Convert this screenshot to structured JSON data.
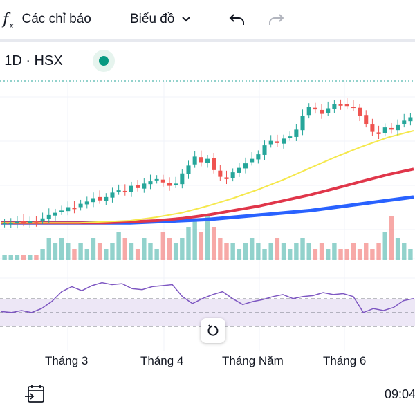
{
  "toolbar": {
    "indicators_icon": "fx-icon",
    "indicators_label": "Các chỉ báo",
    "chart_type_label": "Biểu đồ",
    "undo_icon": "undo-icon",
    "redo_icon": "redo-icon"
  },
  "legend": {
    "symbol_text": "· 1D · HSX",
    "status_color": "#089981"
  },
  "colors": {
    "up": "#26a69a",
    "down": "#ef5350",
    "ma_short": "#f5e84c",
    "ma_mid": "#e0364a",
    "ma_long": "#2962ff",
    "rsi_line": "#7e57c2",
    "rsi_band": "#ede7f6"
  },
  "time_axis": [
    "Tháng 3",
    "Tháng 4",
    "Tháng Năm",
    "Tháng 6"
  ],
  "reset_icon": "reset-icon",
  "bottom": {
    "date_range_icon": "calendar-goto-icon",
    "clock": "09:04"
  },
  "chart_data": {
    "type": "candlestick",
    "title": "",
    "panes": [
      "price",
      "volume",
      "rsi"
    ],
    "grid": true,
    "candles_close_trend": [
      30.1,
      30.1,
      30.2,
      30.1,
      30.3,
      30.2,
      30.5,
      30.8,
      31.0,
      31.2,
      31.5,
      31.4,
      31.8,
      32.0,
      32.3,
      32.1,
      32.4,
      32.8,
      33.0,
      32.9,
      33.4,
      33.2,
      33.6,
      33.8,
      34.0,
      33.7,
      33.4,
      33.6,
      34.5,
      35.2,
      36.0,
      35.5,
      35.8,
      34.8,
      34.2,
      34.0,
      34.6,
      35.0,
      35.4,
      35.8,
      36.2,
      37.0,
      37.4,
      37.2,
      37.6,
      37.8,
      38.4,
      39.6,
      40.4,
      40.2,
      39.8,
      40.3,
      40.7,
      40.6,
      40.5,
      40.4,
      39.6,
      38.9,
      38.2,
      38.0,
      38.6,
      38.4,
      38.8,
      39.2,
      39.5
    ],
    "volume_levels": [
      0.1,
      0.1,
      0.1,
      0.1,
      0.1,
      0.1,
      0.2,
      0.4,
      0.3,
      0.4,
      0.3,
      0.2,
      0.3,
      0.2,
      0.4,
      0.3,
      0.2,
      0.3,
      0.5,
      0.4,
      0.3,
      0.2,
      0.4,
      0.3,
      0.2,
      0.5,
      0.4,
      0.3,
      0.4,
      0.6,
      0.7,
      0.5,
      0.8,
      0.6,
      0.4,
      0.3,
      0.3,
      0.2,
      0.3,
      0.4,
      0.3,
      0.2,
      0.3,
      0.4,
      0.3,
      0.2,
      0.3,
      0.4,
      0.3,
      0.2,
      0.3,
      0.2,
      0.3,
      0.2,
      0.2,
      0.3,
      0.2,
      0.3,
      0.2,
      0.3,
      0.5,
      0.8,
      0.4,
      0.3,
      0.2
    ],
    "ma_short": [
      30.1,
      30.1,
      30.1,
      30.1,
      30.2,
      30.3,
      30.6,
      31.0,
      31.6,
      32.3,
      33.1,
      34.0,
      35.0,
      36.0,
      36.9,
      37.7,
      38.3
    ],
    "ma_mid": [
      30.1,
      30.1,
      30.1,
      30.1,
      30.1,
      30.2,
      30.3,
      30.5,
      30.8,
      31.2,
      31.6,
      32.1,
      32.6,
      33.2,
      33.8,
      34.4,
      34.9
    ],
    "ma_long": [
      30.1,
      30.1,
      30.1,
      30.1,
      30.1,
      30.1,
      30.2,
      30.3,
      30.4,
      30.6,
      30.8,
      31.0,
      31.2,
      31.5,
      31.8,
      32.1,
      32.4
    ],
    "rsi": [
      45,
      44,
      46,
      44,
      48,
      55,
      65,
      70,
      66,
      71,
      74,
      72,
      73,
      68,
      67,
      70,
      71,
      72,
      60,
      53,
      58,
      62,
      65,
      58,
      52,
      55,
      57,
      60,
      62,
      58,
      60,
      61,
      64,
      62,
      63,
      60,
      44,
      48,
      46,
      49,
      56,
      58
    ]
  }
}
